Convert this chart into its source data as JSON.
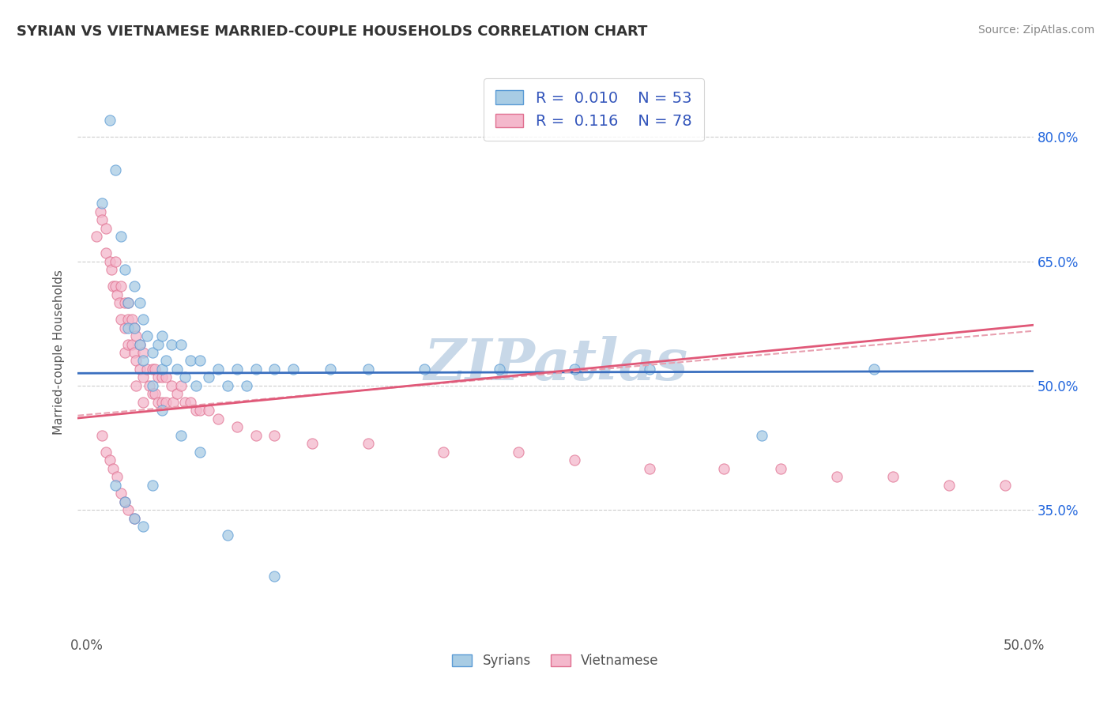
{
  "title": "SYRIAN VS VIETNAMESE MARRIED-COUPLE HOUSEHOLDS CORRELATION CHART",
  "source": "Source: ZipAtlas.com",
  "ylabel": "Married-couple Households",
  "xlim": [
    -0.005,
    0.505
  ],
  "ylim": [
    0.2,
    0.88
  ],
  "xticks": [
    0.0,
    0.1,
    0.2,
    0.3,
    0.4,
    0.5
  ],
  "xtick_labels": [
    "0.0%",
    "",
    "",
    "",
    "",
    "50.0%"
  ],
  "yticks": [
    0.35,
    0.5,
    0.65,
    0.8
  ],
  "ytick_labels": [
    "35.0%",
    "50.0%",
    "65.0%",
    "80.0%"
  ],
  "legend_r1": "0.010",
  "legend_n1": "53",
  "legend_r2": "0.116",
  "legend_n2": "78",
  "blue_face": "#a8cce4",
  "blue_edge": "#5b9bd5",
  "pink_face": "#f4b8cc",
  "pink_edge": "#e07090",
  "line_blue_color": "#3a6fbf",
  "line_pink_color": "#e05878",
  "line_pink_dash_color": "#e8a0b0",
  "watermark": "ZIPatlas",
  "watermark_color": "#c8d8e8",
  "legend_label_color": "#3355bb",
  "syrians_x": [
    0.008,
    0.012,
    0.015,
    0.018,
    0.02,
    0.022,
    0.022,
    0.025,
    0.025,
    0.028,
    0.028,
    0.03,
    0.03,
    0.032,
    0.035,
    0.035,
    0.038,
    0.04,
    0.04,
    0.042,
    0.045,
    0.048,
    0.05,
    0.052,
    0.055,
    0.058,
    0.06,
    0.065,
    0.07,
    0.075,
    0.08,
    0.085,
    0.09,
    0.1,
    0.11,
    0.13,
    0.15,
    0.18,
    0.22,
    0.26,
    0.3,
    0.36,
    0.42,
    0.015,
    0.02,
    0.025,
    0.03,
    0.035,
    0.04,
    0.05,
    0.06,
    0.075,
    0.1
  ],
  "syrians_y": [
    0.72,
    0.82,
    0.76,
    0.68,
    0.64,
    0.6,
    0.57,
    0.62,
    0.57,
    0.6,
    0.55,
    0.58,
    0.53,
    0.56,
    0.54,
    0.5,
    0.55,
    0.56,
    0.52,
    0.53,
    0.55,
    0.52,
    0.55,
    0.51,
    0.53,
    0.5,
    0.53,
    0.51,
    0.52,
    0.5,
    0.52,
    0.5,
    0.52,
    0.52,
    0.52,
    0.52,
    0.52,
    0.52,
    0.52,
    0.52,
    0.52,
    0.44,
    0.52,
    0.38,
    0.36,
    0.34,
    0.33,
    0.38,
    0.47,
    0.44,
    0.42,
    0.32,
    0.27
  ],
  "vietnamese_x": [
    0.005,
    0.007,
    0.008,
    0.01,
    0.01,
    0.012,
    0.013,
    0.014,
    0.015,
    0.015,
    0.016,
    0.017,
    0.018,
    0.018,
    0.02,
    0.02,
    0.02,
    0.022,
    0.022,
    0.022,
    0.024,
    0.024,
    0.025,
    0.025,
    0.026,
    0.026,
    0.026,
    0.028,
    0.028,
    0.03,
    0.03,
    0.03,
    0.032,
    0.033,
    0.035,
    0.035,
    0.036,
    0.036,
    0.038,
    0.038,
    0.04,
    0.04,
    0.042,
    0.042,
    0.045,
    0.046,
    0.048,
    0.05,
    0.052,
    0.055,
    0.058,
    0.06,
    0.065,
    0.07,
    0.08,
    0.09,
    0.1,
    0.12,
    0.15,
    0.19,
    0.23,
    0.26,
    0.3,
    0.34,
    0.37,
    0.4,
    0.43,
    0.46,
    0.49,
    0.008,
    0.01,
    0.012,
    0.014,
    0.016,
    0.018,
    0.02,
    0.022,
    0.025
  ],
  "vietnamese_y": [
    0.68,
    0.71,
    0.7,
    0.69,
    0.66,
    0.65,
    0.64,
    0.62,
    0.65,
    0.62,
    0.61,
    0.6,
    0.62,
    0.58,
    0.6,
    0.57,
    0.54,
    0.6,
    0.58,
    0.55,
    0.58,
    0.55,
    0.57,
    0.54,
    0.56,
    0.53,
    0.5,
    0.55,
    0.52,
    0.54,
    0.51,
    0.48,
    0.52,
    0.5,
    0.52,
    0.49,
    0.52,
    0.49,
    0.51,
    0.48,
    0.51,
    0.48,
    0.51,
    0.48,
    0.5,
    0.48,
    0.49,
    0.5,
    0.48,
    0.48,
    0.47,
    0.47,
    0.47,
    0.46,
    0.45,
    0.44,
    0.44,
    0.43,
    0.43,
    0.42,
    0.42,
    0.41,
    0.4,
    0.4,
    0.4,
    0.39,
    0.39,
    0.38,
    0.38,
    0.44,
    0.42,
    0.41,
    0.4,
    0.39,
    0.37,
    0.36,
    0.35,
    0.34
  ]
}
